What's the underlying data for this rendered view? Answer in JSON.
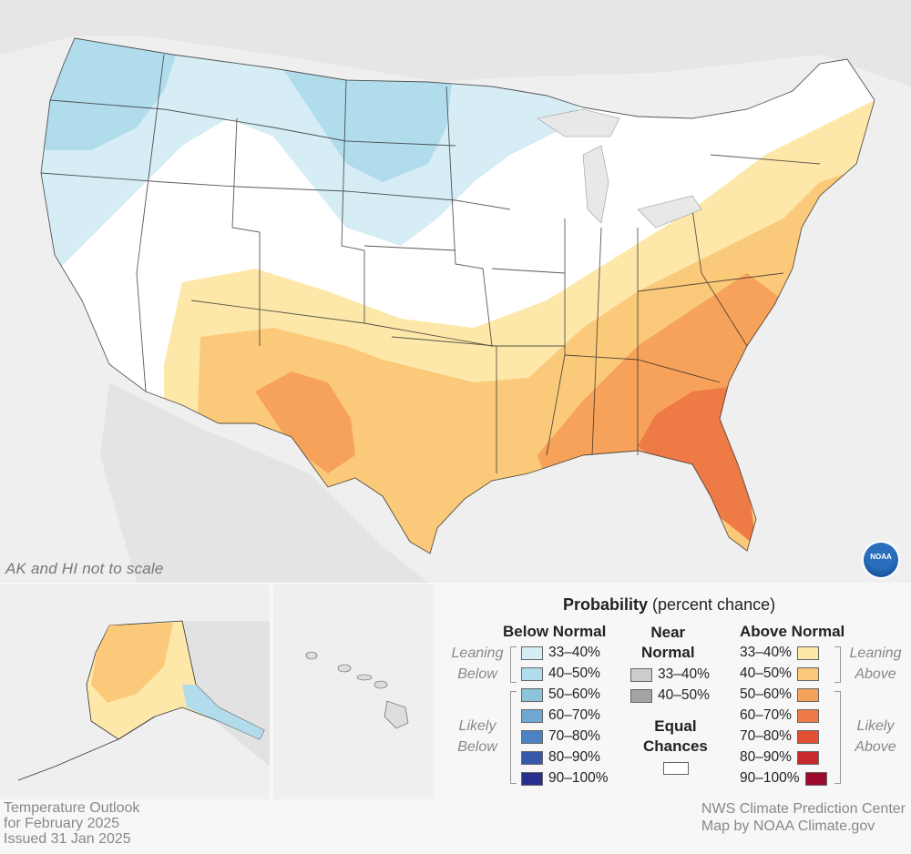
{
  "map": {
    "scale_note": "AK and HI not to scale",
    "logo_text": "NOAA"
  },
  "legend": {
    "title_bold": "Probability",
    "title_rest": " (percent chance)",
    "below": {
      "heading": "Below Normal",
      "leaning_label": "Leaning\nBelow",
      "likely_label": "Likely\nBelow",
      "rows": [
        {
          "label": "33–40%",
          "color": "#d6edf6"
        },
        {
          "label": "40–50%",
          "color": "#b1dcec"
        },
        {
          "label": "50–60%",
          "color": "#8cc3dd"
        },
        {
          "label": "60–70%",
          "color": "#6da7d2"
        },
        {
          "label": "70–80%",
          "color": "#4c81c4"
        },
        {
          "label": "80–90%",
          "color": "#3958ab"
        },
        {
          "label": "90–100%",
          "color": "#292e8c"
        }
      ]
    },
    "near": {
      "heading": "Near\nNormal",
      "rows": [
        {
          "label": "33–40%",
          "color": "#cccccc"
        },
        {
          "label": "40–50%",
          "color": "#a3a3a3"
        }
      ],
      "equal_heading": "Equal\nChances",
      "equal_color": "#ffffff"
    },
    "above": {
      "heading": "Above Normal",
      "leaning_label": "Leaning\nAbove",
      "likely_label": "Likely\nAbove",
      "rows": [
        {
          "label": "33–40%",
          "color": "#fde8aa"
        },
        {
          "label": "40–50%",
          "color": "#fbc97a"
        },
        {
          "label": "50–60%",
          "color": "#f7a25a"
        },
        {
          "label": "60–70%",
          "color": "#ee7a46"
        },
        {
          "label": "70–80%",
          "color": "#e24f33"
        },
        {
          "label": "80–90%",
          "color": "#c72a2e"
        },
        {
          "label": "90–100%",
          "color": "#9b0a2b"
        }
      ]
    }
  },
  "footer": {
    "left_line1": "Temperature Outlook",
    "left_line2": "for February 2025",
    "left_line3": "Issued 31 Jan 2025",
    "right_line1": "NWS Climate Prediction Center",
    "right_line2": "Map by NOAA Climate.gov"
  }
}
